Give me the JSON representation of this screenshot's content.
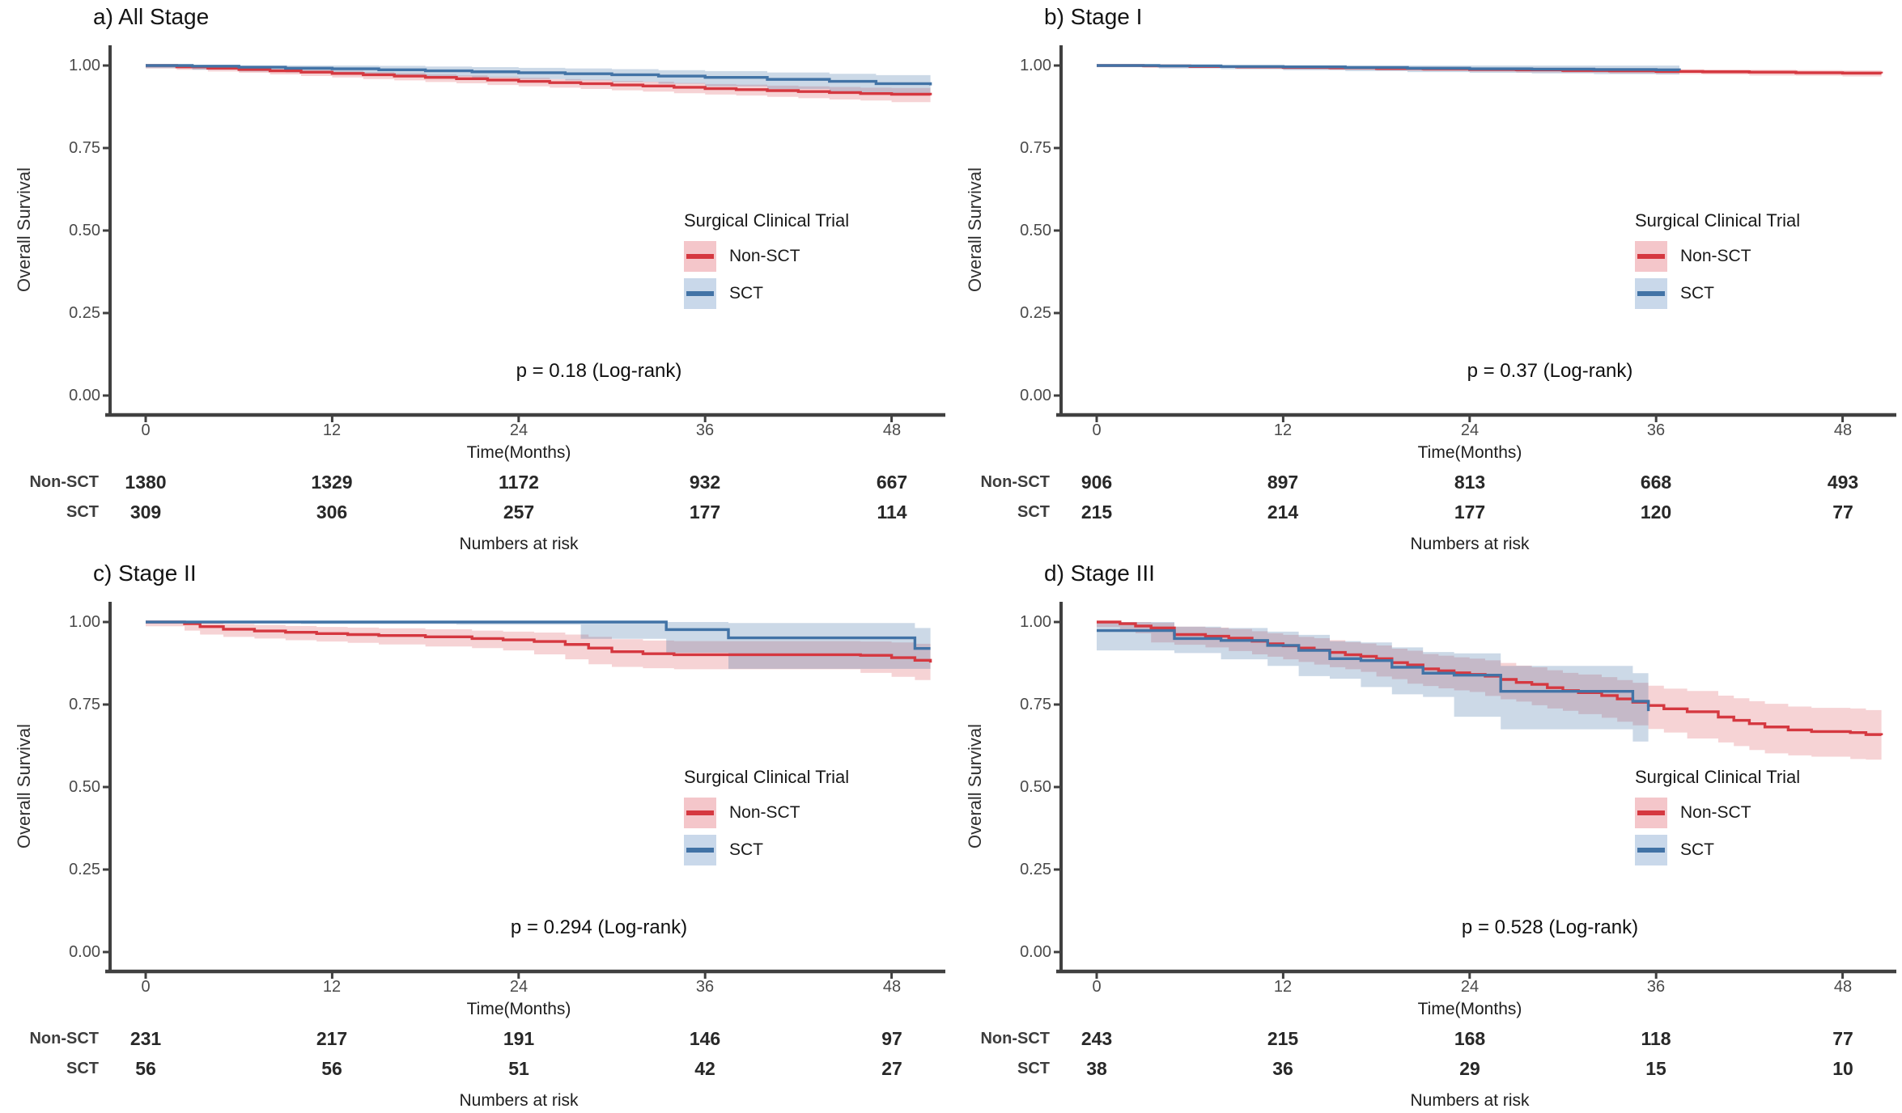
{
  "figure": {
    "description": "Kaplan-Meier overall survival curves comparing Surgical Clinical Trial (SCT) vs Non-SCT patients, by stage",
    "legend_title": "Surgical Clinical Trial",
    "group_labels": [
      "Non-SCT",
      "SCT"
    ]
  },
  "colors": {
    "non_sct_line": "#d53840",
    "sct_line": "#4273a6",
    "non_sct_band": "rgba(215,56,64,0.22)",
    "sct_band": "rgba(66,115,166,0.27)",
    "axis": "#404040"
  },
  "chart_data": [
    {
      "type": "line",
      "subtype": "kaplan-meier-step",
      "title": "a) All Stage",
      "p_label": "p = 0.18 (Log-rank)",
      "legend_title": "Surgical Clinical Trial",
      "xlabel": "Time(Months)",
      "ylabel": "Overall Survival",
      "risk_caption": "Numbers at risk",
      "x_ticks": [
        0,
        12,
        24,
        36,
        48
      ],
      "y_ticks": [
        "1.00",
        "0.75",
        "0.50",
        "0.25",
        "0.00"
      ],
      "xlim": [
        0,
        50.5
      ],
      "ylim": [
        0,
        1
      ],
      "series": [
        {
          "name": "Non-SCT",
          "color": "red",
          "steps": [
            [
              0,
              1.0,
              0.004
            ],
            [
              2,
              0.996,
              0.005
            ],
            [
              4,
              0.992,
              0.005
            ],
            [
              6,
              0.988,
              0.006
            ],
            [
              8,
              0.984,
              0.006
            ],
            [
              10,
              0.98,
              0.007
            ],
            [
              12,
              0.976,
              0.008
            ],
            [
              14,
              0.972,
              0.008
            ],
            [
              16,
              0.968,
              0.009
            ],
            [
              18,
              0.964,
              0.009
            ],
            [
              20,
              0.96,
              0.01
            ],
            [
              22,
              0.956,
              0.01
            ],
            [
              24,
              0.952,
              0.011
            ],
            [
              26,
              0.948,
              0.011
            ],
            [
              28,
              0.945,
              0.012
            ],
            [
              30,
              0.941,
              0.012
            ],
            [
              32,
              0.938,
              0.013
            ],
            [
              34,
              0.934,
              0.013
            ],
            [
              36,
              0.93,
              0.014
            ],
            [
              38,
              0.927,
              0.015
            ],
            [
              40,
              0.924,
              0.015
            ],
            [
              42,
              0.921,
              0.016
            ],
            [
              44,
              0.918,
              0.017
            ],
            [
              46,
              0.915,
              0.018
            ],
            [
              48,
              0.913,
              0.019
            ],
            [
              50.5,
              0.91,
              0.021
            ]
          ]
        },
        {
          "name": "SCT",
          "color": "blue",
          "steps": [
            [
              0,
              1.0,
              0.003
            ],
            [
              3,
              0.998,
              0.006
            ],
            [
              6,
              0.995,
              0.008
            ],
            [
              9,
              0.992,
              0.01
            ],
            [
              12,
              0.99,
              0.011
            ],
            [
              15,
              0.987,
              0.012
            ],
            [
              18,
              0.984,
              0.013
            ],
            [
              21,
              0.981,
              0.014
            ],
            [
              24,
              0.978,
              0.015
            ],
            [
              27,
              0.975,
              0.016
            ],
            [
              30,
              0.972,
              0.017
            ],
            [
              33,
              0.968,
              0.018
            ],
            [
              36,
              0.964,
              0.019
            ],
            [
              40,
              0.958,
              0.021
            ],
            [
              44,
              0.952,
              0.023
            ],
            [
              47,
              0.945,
              0.026
            ],
            [
              50.5,
              0.94,
              0.028
            ]
          ]
        }
      ],
      "risk_table": {
        "rows": [
          {
            "label": "Non-SCT",
            "values": [
              1380,
              1329,
              1172,
              932,
              667
            ]
          },
          {
            "label": "SCT",
            "values": [
              309,
              306,
              257,
              177,
              114
            ]
          }
        ]
      }
    },
    {
      "type": "line",
      "subtype": "kaplan-meier-step",
      "title": "b) Stage I",
      "p_label": "p = 0.37 (Log-rank)",
      "legend_title": "Surgical Clinical Trial",
      "xlabel": "Time(Months)",
      "ylabel": "Overall Survival",
      "risk_caption": "Numbers at risk",
      "x_ticks": [
        0,
        12,
        24,
        36,
        48
      ],
      "y_ticks": [
        "1.00",
        "0.75",
        "0.50",
        "0.25",
        "0.00"
      ],
      "xlim": [
        0,
        50.5
      ],
      "ylim": [
        0,
        1
      ],
      "series": [
        {
          "name": "Non-SCT",
          "color": "red",
          "steps": [
            [
              0,
              1.0,
              0.002
            ],
            [
              3,
              0.999,
              0.002
            ],
            [
              6,
              0.997,
              0.003
            ],
            [
              9,
              0.996,
              0.003
            ],
            [
              12,
              0.994,
              0.004
            ],
            [
              15,
              0.993,
              0.004
            ],
            [
              18,
              0.991,
              0.004
            ],
            [
              21,
              0.99,
              0.005
            ],
            [
              24,
              0.988,
              0.005
            ],
            [
              27,
              0.987,
              0.005
            ],
            [
              30,
              0.985,
              0.006
            ],
            [
              33,
              0.984,
              0.006
            ],
            [
              36,
              0.982,
              0.006
            ],
            [
              39,
              0.981,
              0.007
            ],
            [
              42,
              0.98,
              0.007
            ],
            [
              45,
              0.978,
              0.008
            ],
            [
              48,
              0.977,
              0.008
            ],
            [
              50.5,
              0.976,
              0.009
            ]
          ]
        },
        {
          "name": "SCT",
          "color": "blue",
          "steps": [
            [
              0,
              1.0,
              0.002
            ],
            [
              4,
              0.999,
              0.004
            ],
            [
              8,
              0.997,
              0.006
            ],
            [
              12,
              0.996,
              0.007
            ],
            [
              16,
              0.994,
              0.008
            ],
            [
              20,
              0.992,
              0.009
            ],
            [
              24,
              0.99,
              0.01
            ],
            [
              28,
              0.989,
              0.011
            ],
            [
              32,
              0.988,
              0.012
            ],
            [
              36,
              0.987,
              0.013
            ],
            [
              37.5,
              0.986,
              0.013
            ]
          ]
        }
      ],
      "risk_table": {
        "rows": [
          {
            "label": "Non-SCT",
            "values": [
              906,
              897,
              813,
              668,
              493
            ]
          },
          {
            "label": "SCT",
            "values": [
              215,
              214,
              177,
              120,
              77
            ]
          }
        ]
      }
    },
    {
      "type": "line",
      "subtype": "kaplan-meier-step",
      "title": "c) Stage II",
      "p_label": "p = 0.294 (Log-rank)",
      "legend_title": "Surgical Clinical Trial",
      "xlabel": "Time(Months)",
      "ylabel": "Overall Survival",
      "risk_caption": "Numbers at risk",
      "x_ticks": [
        0,
        12,
        24,
        36,
        48
      ],
      "y_ticks": [
        "1.00",
        "0.75",
        "0.50",
        "0.25",
        "0.00"
      ],
      "xlim": [
        0,
        50.5
      ],
      "ylim": [
        0,
        1
      ],
      "series": [
        {
          "name": "Non-SCT",
          "color": "red",
          "steps": [
            [
              0,
              1.0,
              0.004
            ],
            [
              2.5,
              0.995,
              0.008
            ],
            [
              3.5,
              0.986,
              0.012
            ],
            [
              5,
              0.978,
              0.016
            ],
            [
              7,
              0.973,
              0.018
            ],
            [
              9,
              0.969,
              0.019
            ],
            [
              11,
              0.965,
              0.02
            ],
            [
              13,
              0.962,
              0.021
            ],
            [
              15,
              0.959,
              0.022
            ],
            [
              18,
              0.955,
              0.023
            ],
            [
              21,
              0.95,
              0.024
            ],
            [
              23,
              0.946,
              0.025
            ],
            [
              25,
              0.941,
              0.027
            ],
            [
              27,
              0.932,
              0.03
            ],
            [
              28.5,
              0.921,
              0.034
            ],
            [
              30,
              0.91,
              0.038
            ],
            [
              32,
              0.904,
              0.04
            ],
            [
              34,
              0.901,
              0.041
            ],
            [
              46,
              0.899,
              0.042
            ],
            [
              48,
              0.892,
              0.046
            ],
            [
              49.5,
              0.884,
              0.05
            ],
            [
              50.5,
              0.877,
              0.053
            ]
          ]
        },
        {
          "name": "SCT",
          "color": "blue",
          "steps": [
            [
              0,
              1.0,
              0.002
            ],
            [
              10,
              1.0,
              0.004
            ],
            [
              20,
              1.0,
              0.006
            ],
            [
              28,
              1.0,
              0.008
            ],
            [
              33.5,
              0.977,
              0.028
            ],
            [
              37.5,
              0.952,
              0.045
            ],
            [
              49.5,
              0.92,
              0.062
            ],
            [
              50.5,
              0.92,
              0.062
            ]
          ]
        }
      ],
      "risk_table": {
        "rows": [
          {
            "label": "Non-SCT",
            "values": [
              231,
              217,
              191,
              146,
              97
            ]
          },
          {
            "label": "SCT",
            "values": [
              56,
              56,
              51,
              42,
              27
            ]
          }
        ]
      }
    },
    {
      "type": "line",
      "subtype": "kaplan-meier-step",
      "title": "d) Stage III",
      "p_label": "p = 0.528 (Log-rank)",
      "legend_title": "Surgical Clinical Trial",
      "xlabel": "Time(Months)",
      "ylabel": "Overall Survival",
      "risk_caption": "Numbers at risk",
      "x_ticks": [
        0,
        12,
        24,
        36,
        48
      ],
      "y_ticks": [
        "1.00",
        "0.75",
        "0.50",
        "0.25",
        "0.00"
      ],
      "xlim": [
        0,
        50.5
      ],
      "ylim": [
        0,
        1
      ],
      "series": [
        {
          "name": "Non-SCT",
          "color": "red",
          "steps": [
            [
              0,
              1.0,
              0.006
            ],
            [
              1.5,
              0.995,
              0.01
            ],
            [
              2.5,
              0.988,
              0.013
            ],
            [
              3.5,
              0.982,
              0.016
            ],
            [
              5,
              0.962,
              0.024
            ],
            [
              7,
              0.957,
              0.026
            ],
            [
              8.5,
              0.951,
              0.028
            ],
            [
              10,
              0.942,
              0.03
            ],
            [
              11,
              0.934,
              0.032
            ],
            [
              12,
              0.928,
              0.033
            ],
            [
              13,
              0.921,
              0.034
            ],
            [
              14,
              0.915,
              0.036
            ],
            [
              15,
              0.908,
              0.037
            ],
            [
              16,
              0.901,
              0.038
            ],
            [
              17,
              0.896,
              0.039
            ],
            [
              18,
              0.889,
              0.04
            ],
            [
              19,
              0.877,
              0.042
            ],
            [
              20,
              0.87,
              0.043
            ],
            [
              21,
              0.858,
              0.045
            ],
            [
              22,
              0.852,
              0.046
            ],
            [
              23,
              0.846,
              0.047
            ],
            [
              24,
              0.841,
              0.048
            ],
            [
              25,
              0.836,
              0.048
            ],
            [
              26,
              0.826,
              0.05
            ],
            [
              27,
              0.817,
              0.051
            ],
            [
              28,
              0.811,
              0.052
            ],
            [
              29,
              0.801,
              0.053
            ],
            [
              30,
              0.792,
              0.054
            ],
            [
              31,
              0.786,
              0.055
            ],
            [
              32.5,
              0.777,
              0.056
            ],
            [
              33.5,
              0.767,
              0.057
            ],
            [
              34.5,
              0.757,
              0.059
            ],
            [
              35.5,
              0.747,
              0.06
            ],
            [
              36.5,
              0.737,
              0.061
            ],
            [
              38,
              0.728,
              0.063
            ],
            [
              40,
              0.712,
              0.065
            ],
            [
              41,
              0.702,
              0.067
            ],
            [
              42,
              0.692,
              0.068
            ],
            [
              43,
              0.682,
              0.07
            ],
            [
              44.5,
              0.673,
              0.071
            ],
            [
              46,
              0.668,
              0.072
            ],
            [
              48.5,
              0.665,
              0.073
            ],
            [
              49.5,
              0.659,
              0.074
            ],
            [
              50.5,
              0.657,
              0.074
            ]
          ]
        },
        {
          "name": "SCT",
          "color": "blue",
          "steps": [
            [
              0,
              0.974,
              0.026
            ],
            [
              5,
              0.95,
              0.036
            ],
            [
              8,
              0.944,
              0.038
            ],
            [
              11,
              0.929,
              0.042
            ],
            [
              13,
              0.914,
              0.047
            ],
            [
              15,
              0.889,
              0.053
            ],
            [
              17,
              0.883,
              0.055
            ],
            [
              19,
              0.863,
              0.06
            ],
            [
              21,
              0.845,
              0.064
            ],
            [
              23,
              0.839,
              0.066
            ],
            [
              26,
              0.79,
              0.077
            ],
            [
              34.5,
              0.76,
              0.085
            ],
            [
              35.5,
              0.73,
              0.092
            ]
          ]
        }
      ],
      "risk_table": {
        "rows": [
          {
            "label": "Non-SCT",
            "values": [
              243,
              215,
              168,
              118,
              77
            ]
          },
          {
            "label": "SCT",
            "values": [
              38,
              36,
              29,
              15,
              10
            ]
          }
        ]
      }
    }
  ]
}
